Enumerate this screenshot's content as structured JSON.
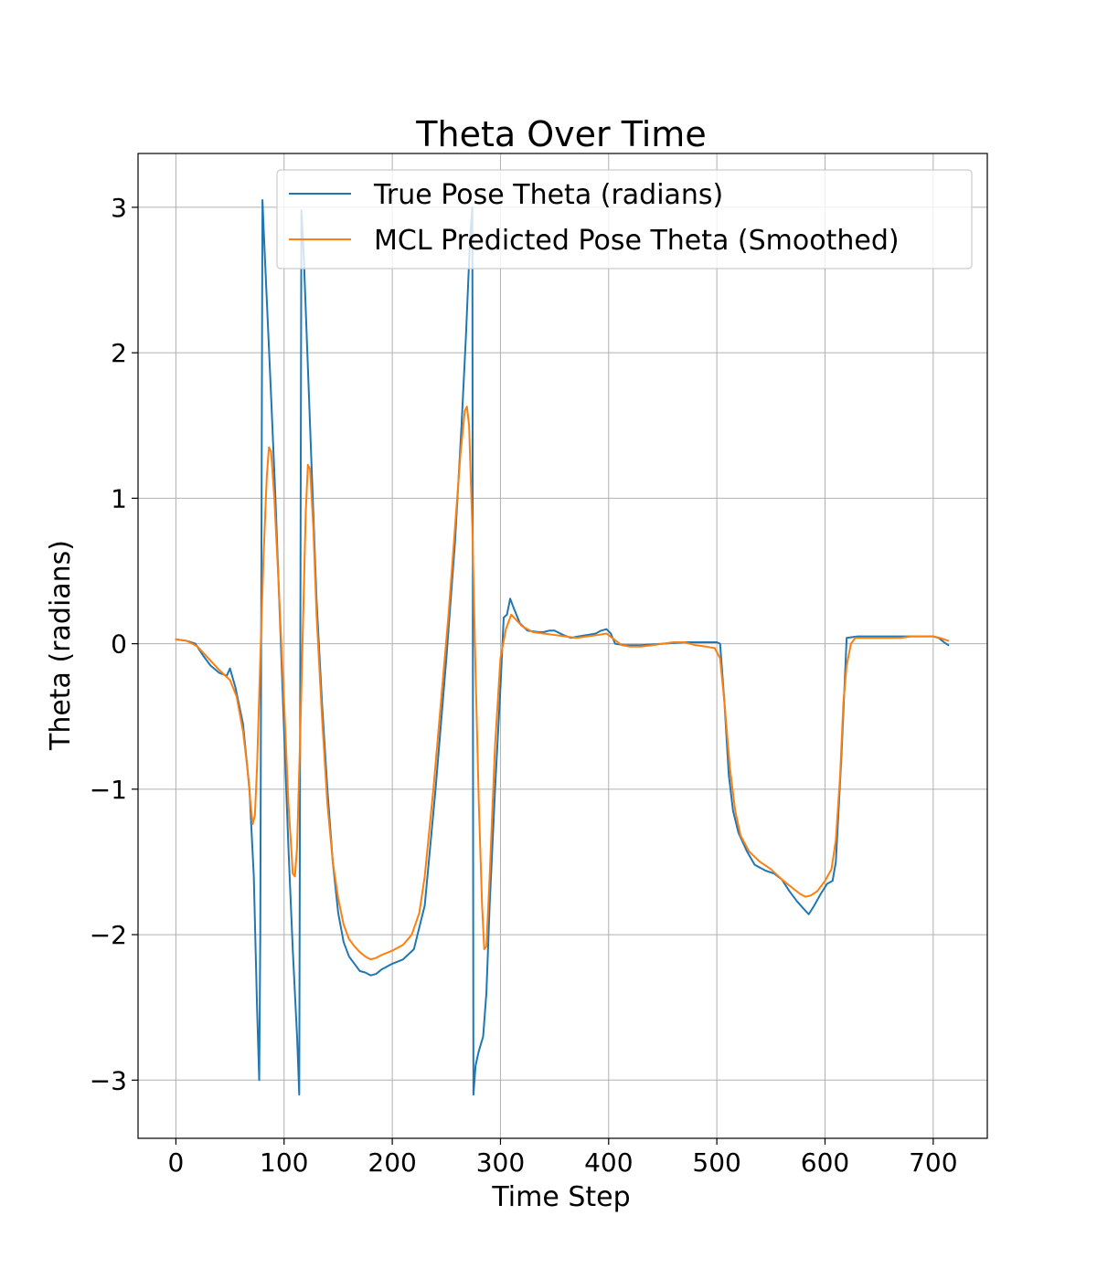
{
  "chart_data": {
    "type": "line",
    "title": "Theta Over Time",
    "xlabel": "Time Step",
    "ylabel": "Theta (radians)",
    "xlim": [
      -35,
      750
    ],
    "ylim": [
      -3.4,
      3.37
    ],
    "xticks": [
      0,
      100,
      200,
      300,
      400,
      500,
      600,
      700
    ],
    "yticks": [
      -3,
      -2,
      -1,
      0,
      1,
      2,
      3
    ],
    "xtick_labels": [
      "0",
      "100",
      "200",
      "300",
      "400",
      "500",
      "600",
      "700"
    ],
    "ytick_labels": [
      "−3",
      "−2",
      "−1",
      "0",
      "1",
      "2",
      "3"
    ],
    "grid": true,
    "legend_position": "upper-right",
    "series": [
      {
        "name": "True Pose Theta (radians)",
        "color": "#1f77b4",
        "points": [
          [
            0,
            0.03
          ],
          [
            10,
            0.02
          ],
          [
            18,
            0.0
          ],
          [
            25,
            -0.08
          ],
          [
            32,
            -0.15
          ],
          [
            40,
            -0.2
          ],
          [
            47,
            -0.22
          ],
          [
            50,
            -0.17
          ],
          [
            55,
            -0.3
          ],
          [
            62,
            -0.55
          ],
          [
            68,
            -1.0
          ],
          [
            72,
            -1.6
          ],
          [
            75,
            -2.5
          ],
          [
            77,
            -3.0
          ],
          [
            78,
            -2.0
          ],
          [
            79,
            0.5
          ],
          [
            80,
            3.05
          ],
          [
            82,
            2.7
          ],
          [
            85,
            2.2
          ],
          [
            88,
            1.7
          ],
          [
            92,
            1.0
          ],
          [
            96,
            0.2
          ],
          [
            100,
            -0.6
          ],
          [
            104,
            -1.4
          ],
          [
            108,
            -2.1
          ],
          [
            112,
            -2.7
          ],
          [
            114,
            -3.1
          ],
          [
            115,
            0.0
          ],
          [
            116,
            2.98
          ],
          [
            118,
            2.7
          ],
          [
            122,
            1.9
          ],
          [
            126,
            1.1
          ],
          [
            130,
            0.3
          ],
          [
            135,
            -0.4
          ],
          [
            140,
            -1.0
          ],
          [
            145,
            -1.5
          ],
          [
            150,
            -1.85
          ],
          [
            155,
            -2.05
          ],
          [
            160,
            -2.15
          ],
          [
            165,
            -2.2
          ],
          [
            170,
            -2.25
          ],
          [
            175,
            -2.26
          ],
          [
            180,
            -2.28
          ],
          [
            185,
            -2.27
          ],
          [
            190,
            -2.24
          ],
          [
            200,
            -2.2
          ],
          [
            210,
            -2.17
          ],
          [
            220,
            -2.1
          ],
          [
            230,
            -1.8
          ],
          [
            240,
            -1.0
          ],
          [
            250,
            -0.1
          ],
          [
            258,
            0.7
          ],
          [
            264,
            1.5
          ],
          [
            268,
            2.1
          ],
          [
            272,
            2.8
          ],
          [
            274,
            3.0
          ],
          [
            275,
            -3.1
          ],
          [
            277,
            -2.9
          ],
          [
            280,
            -2.8
          ],
          [
            284,
            -2.7
          ],
          [
            287,
            -2.4
          ],
          [
            290,
            -1.8
          ],
          [
            295,
            -1.0
          ],
          [
            300,
            -0.3
          ],
          [
            303,
            0.18
          ],
          [
            306,
            0.2
          ],
          [
            309,
            0.31
          ],
          [
            312,
            0.25
          ],
          [
            318,
            0.14
          ],
          [
            325,
            0.09
          ],
          [
            335,
            0.08
          ],
          [
            340,
            0.08
          ],
          [
            345,
            0.09
          ],
          [
            350,
            0.09
          ],
          [
            358,
            0.06
          ],
          [
            365,
            0.04
          ],
          [
            372,
            0.05
          ],
          [
            380,
            0.06
          ],
          [
            388,
            0.07
          ],
          [
            393,
            0.09
          ],
          [
            398,
            0.1
          ],
          [
            402,
            0.07
          ],
          [
            406,
            0.0
          ],
          [
            415,
            -0.01
          ],
          [
            430,
            -0.01
          ],
          [
            450,
            0.0
          ],
          [
            470,
            0.01
          ],
          [
            490,
            0.01
          ],
          [
            500,
            0.01
          ],
          [
            503,
            0.0
          ],
          [
            507,
            -0.4
          ],
          [
            511,
            -0.9
          ],
          [
            515,
            -1.15
          ],
          [
            520,
            -1.3
          ],
          [
            528,
            -1.43
          ],
          [
            535,
            -1.52
          ],
          [
            545,
            -1.56
          ],
          [
            553,
            -1.58
          ],
          [
            560,
            -1.62
          ],
          [
            567,
            -1.7
          ],
          [
            574,
            -1.77
          ],
          [
            580,
            -1.82
          ],
          [
            585,
            -1.86
          ],
          [
            590,
            -1.8
          ],
          [
            596,
            -1.72
          ],
          [
            602,
            -1.65
          ],
          [
            607,
            -1.63
          ],
          [
            610,
            -1.5
          ],
          [
            615,
            -0.8
          ],
          [
            618,
            -0.3
          ],
          [
            620,
            0.04
          ],
          [
            630,
            0.05
          ],
          [
            650,
            0.05
          ],
          [
            670,
            0.05
          ],
          [
            690,
            0.05
          ],
          [
            700,
            0.05
          ],
          [
            705,
            0.04
          ],
          [
            710,
            0.01
          ],
          [
            714,
            -0.01
          ]
        ]
      },
      {
        "name": "MCL Predicted Pose Theta (Smoothed)",
        "color": "#ff7f0e",
        "points": [
          [
            0,
            0.03
          ],
          [
            10,
            0.02
          ],
          [
            20,
            -0.02
          ],
          [
            30,
            -0.1
          ],
          [
            40,
            -0.18
          ],
          [
            50,
            -0.25
          ],
          [
            56,
            -0.36
          ],
          [
            62,
            -0.6
          ],
          [
            66,
            -0.85
          ],
          [
            69,
            -1.1
          ],
          [
            71,
            -1.24
          ],
          [
            73,
            -1.18
          ],
          [
            75,
            -0.85
          ],
          [
            78,
            -0.1
          ],
          [
            81,
            0.6
          ],
          [
            84,
            1.15
          ],
          [
            86,
            1.35
          ],
          [
            88,
            1.32
          ],
          [
            91,
            1.0
          ],
          [
            95,
            0.4
          ],
          [
            100,
            -0.4
          ],
          [
            104,
            -1.1
          ],
          [
            107,
            -1.45
          ],
          [
            108,
            -1.58
          ],
          [
            110,
            -1.6
          ],
          [
            112,
            -1.4
          ],
          [
            115,
            -0.6
          ],
          [
            118,
            0.3
          ],
          [
            120,
            0.9
          ],
          [
            122,
            1.23
          ],
          [
            124,
            1.2
          ],
          [
            127,
            0.8
          ],
          [
            130,
            0.2
          ],
          [
            135,
            -0.5
          ],
          [
            140,
            -1.1
          ],
          [
            145,
            -1.5
          ],
          [
            150,
            -1.75
          ],
          [
            155,
            -1.93
          ],
          [
            160,
            -2.03
          ],
          [
            165,
            -2.08
          ],
          [
            170,
            -2.12
          ],
          [
            175,
            -2.15
          ],
          [
            180,
            -2.17
          ],
          [
            185,
            -2.16
          ],
          [
            190,
            -2.14
          ],
          [
            200,
            -2.11
          ],
          [
            210,
            -2.07
          ],
          [
            218,
            -2.0
          ],
          [
            225,
            -1.85
          ],
          [
            230,
            -1.6
          ],
          [
            238,
            -1.0
          ],
          [
            245,
            -0.4
          ],
          [
            252,
            0.2
          ],
          [
            258,
            0.8
          ],
          [
            263,
            1.3
          ],
          [
            267,
            1.6
          ],
          [
            269,
            1.63
          ],
          [
            271,
            1.5
          ],
          [
            274,
            0.8
          ],
          [
            277,
            -0.2
          ],
          [
            280,
            -1.1
          ],
          [
            283,
            -1.8
          ],
          [
            285,
            -2.1
          ],
          [
            287,
            -2.08
          ],
          [
            290,
            -1.6
          ],
          [
            295,
            -0.7
          ],
          [
            300,
            -0.1
          ],
          [
            305,
            0.1
          ],
          [
            310,
            0.2
          ],
          [
            315,
            0.16
          ],
          [
            320,
            0.12
          ],
          [
            330,
            0.08
          ],
          [
            340,
            0.07
          ],
          [
            350,
            0.06
          ],
          [
            360,
            0.05
          ],
          [
            370,
            0.04
          ],
          [
            380,
            0.05
          ],
          [
            390,
            0.06
          ],
          [
            398,
            0.07
          ],
          [
            405,
            0.03
          ],
          [
            412,
            -0.01
          ],
          [
            420,
            -0.02
          ],
          [
            430,
            -0.02
          ],
          [
            440,
            -0.01
          ],
          [
            450,
            0.0
          ],
          [
            460,
            0.01
          ],
          [
            470,
            0.01
          ],
          [
            480,
            -0.01
          ],
          [
            490,
            -0.02
          ],
          [
            498,
            -0.03
          ],
          [
            503,
            -0.1
          ],
          [
            507,
            -0.4
          ],
          [
            512,
            -0.85
          ],
          [
            517,
            -1.15
          ],
          [
            522,
            -1.32
          ],
          [
            530,
            -1.43
          ],
          [
            540,
            -1.5
          ],
          [
            550,
            -1.55
          ],
          [
            560,
            -1.62
          ],
          [
            570,
            -1.68
          ],
          [
            577,
            -1.72
          ],
          [
            582,
            -1.74
          ],
          [
            587,
            -1.73
          ],
          [
            593,
            -1.7
          ],
          [
            600,
            -1.63
          ],
          [
            606,
            -1.55
          ],
          [
            610,
            -1.35
          ],
          [
            614,
            -0.9
          ],
          [
            617,
            -0.4
          ],
          [
            620,
            -0.15
          ],
          [
            624,
            0.0
          ],
          [
            628,
            0.04
          ],
          [
            640,
            0.04
          ],
          [
            660,
            0.04
          ],
          [
            670,
            0.04
          ],
          [
            680,
            0.05
          ],
          [
            690,
            0.05
          ],
          [
            700,
            0.05
          ],
          [
            706,
            0.04
          ],
          [
            714,
            0.02
          ]
        ]
      }
    ]
  }
}
